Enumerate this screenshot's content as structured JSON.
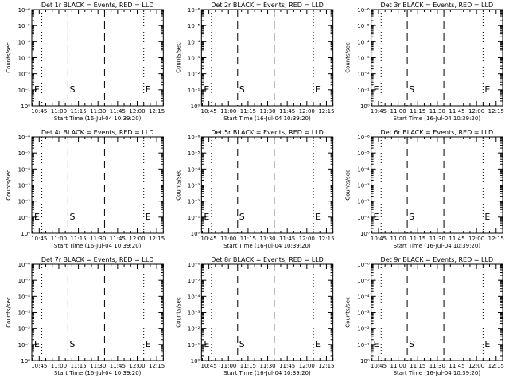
{
  "x_tick_labels": [
    "10:45",
    "11:00",
    "11:15",
    "11:30",
    "11:45",
    "12:00",
    "12:15"
  ],
  "y_tick_labels": [
    "10⁰",
    "10⁻¹",
    "10⁻²",
    "10⁻³",
    "10⁻⁴",
    "10⁻⁵",
    "10⁻⁶"
  ],
  "marker_labels": [
    "E",
    "S",
    "E"
  ],
  "colors": {
    "background": "#ffffff",
    "axis": "#000000",
    "events": "#000000",
    "lld": "#ff0000"
  },
  "chart_data": [
    {
      "type": "line",
      "title": "Det 1r BLACK = Events, RED = LLD",
      "xlabel": "Start Time (16-Jul-04 10:39:20)",
      "ylabel": "Counts/sec",
      "xlim": [
        "10:39:20",
        "12:20"
      ],
      "ylim": [
        1,
        1e-06
      ],
      "y_scale": "log",
      "series": [],
      "annotations": [
        {
          "style": "dotted",
          "time": "10:47"
        },
        {
          "style": "dashed",
          "time": "11:07"
        },
        {
          "style": "dashed",
          "time": "11:35"
        },
        {
          "style": "dotted",
          "time": "12:05"
        }
      ]
    },
    {
      "type": "line",
      "title": "Det 2r BLACK = Events, RED = LLD",
      "xlabel": "Start Time (16-Jul-04 10:39:20)",
      "ylabel": "Counts/sec",
      "xlim": [
        "10:39:20",
        "12:20"
      ],
      "ylim": [
        1,
        1e-06
      ],
      "y_scale": "log",
      "series": [],
      "annotations": [
        {
          "style": "dotted",
          "time": "10:47"
        },
        {
          "style": "dashed",
          "time": "11:07"
        },
        {
          "style": "dashed",
          "time": "11:35"
        },
        {
          "style": "dotted",
          "time": "12:05"
        }
      ]
    },
    {
      "type": "line",
      "title": "Det 3r BLACK = Events, RED = LLD",
      "xlabel": "Start Time (16-Jul-04 10:39:20)",
      "ylabel": "Counts/sec",
      "xlim": [
        "10:39:20",
        "12:20"
      ],
      "ylim": [
        1,
        1e-06
      ],
      "y_scale": "log",
      "series": [],
      "annotations": [
        {
          "style": "dotted",
          "time": "10:47"
        },
        {
          "style": "dashed",
          "time": "11:07"
        },
        {
          "style": "dashed",
          "time": "11:35"
        },
        {
          "style": "dotted",
          "time": "12:05"
        }
      ]
    },
    {
      "type": "line",
      "title": "Det 4r BLACK = Events, RED = LLD",
      "xlabel": "Start Time (16-Jul-04 10:39:20)",
      "ylabel": "Counts/sec",
      "xlim": [
        "10:39:20",
        "12:20"
      ],
      "ylim": [
        1,
        1e-06
      ],
      "y_scale": "log",
      "series": [],
      "annotations": [
        {
          "style": "dotted",
          "time": "10:47"
        },
        {
          "style": "dashed",
          "time": "11:07"
        },
        {
          "style": "dashed",
          "time": "11:35"
        },
        {
          "style": "dotted",
          "time": "12:05"
        }
      ]
    },
    {
      "type": "line",
      "title": "Det 5r BLACK = Events, RED = LLD",
      "xlabel": "Start Time (16-Jul-04 10:39:20)",
      "ylabel": "Counts/sec",
      "xlim": [
        "10:39:20",
        "12:20"
      ],
      "ylim": [
        1,
        1e-06
      ],
      "y_scale": "log",
      "series": [],
      "annotations": [
        {
          "style": "dotted",
          "time": "10:47"
        },
        {
          "style": "dashed",
          "time": "11:07"
        },
        {
          "style": "dashed",
          "time": "11:35"
        },
        {
          "style": "dotted",
          "time": "12:05"
        }
      ]
    },
    {
      "type": "line",
      "title": "Det 6r BLACK = Events, RED = LLD",
      "xlabel": "Start Time (16-Jul-04 10:39:20)",
      "ylabel": "Counts/sec",
      "xlim": [
        "10:39:20",
        "12:20"
      ],
      "ylim": [
        1,
        1e-06
      ],
      "y_scale": "log",
      "series": [],
      "annotations": [
        {
          "style": "dotted",
          "time": "10:47"
        },
        {
          "style": "dashed",
          "time": "11:07"
        },
        {
          "style": "dashed",
          "time": "11:35"
        },
        {
          "style": "dotted",
          "time": "12:05"
        }
      ]
    },
    {
      "type": "line",
      "title": "Det 7r BLACK = Events, RED = LLD",
      "xlabel": "Start Time (16-Jul-04 10:39:20)",
      "ylabel": "Counts/sec",
      "xlim": [
        "10:39:20",
        "12:20"
      ],
      "ylim": [
        1,
        1e-06
      ],
      "y_scale": "log",
      "series": [],
      "annotations": [
        {
          "style": "dotted",
          "time": "10:47"
        },
        {
          "style": "dashed",
          "time": "11:07"
        },
        {
          "style": "dashed",
          "time": "11:35"
        },
        {
          "style": "dotted",
          "time": "12:05"
        }
      ]
    },
    {
      "type": "line",
      "title": "Det 8r BLACK = Events, RED = LLD",
      "xlabel": "Start Time (16-Jul-04 10:39:20)",
      "ylabel": "Counts/sec",
      "xlim": [
        "10:39:20",
        "12:20"
      ],
      "ylim": [
        1,
        1e-06
      ],
      "y_scale": "log",
      "series": [],
      "annotations": [
        {
          "style": "dotted",
          "time": "10:47"
        },
        {
          "style": "dashed",
          "time": "11:07"
        },
        {
          "style": "dashed",
          "time": "11:35"
        },
        {
          "style": "dotted",
          "time": "12:05"
        }
      ]
    },
    {
      "type": "line",
      "title": "Det 9r BLACK = Events, RED = LLD",
      "xlabel": "Start Time (16-Jul-04 10:39:20)",
      "ylabel": "Counts/sec",
      "xlim": [
        "10:39:20",
        "12:20"
      ],
      "ylim": [
        1,
        1e-06
      ],
      "y_scale": "log",
      "series": [],
      "annotations": [
        {
          "style": "dotted",
          "time": "10:47"
        },
        {
          "style": "dashed",
          "time": "11:07"
        },
        {
          "style": "dashed",
          "time": "11:35"
        },
        {
          "style": "dotted",
          "time": "12:05"
        }
      ]
    }
  ]
}
